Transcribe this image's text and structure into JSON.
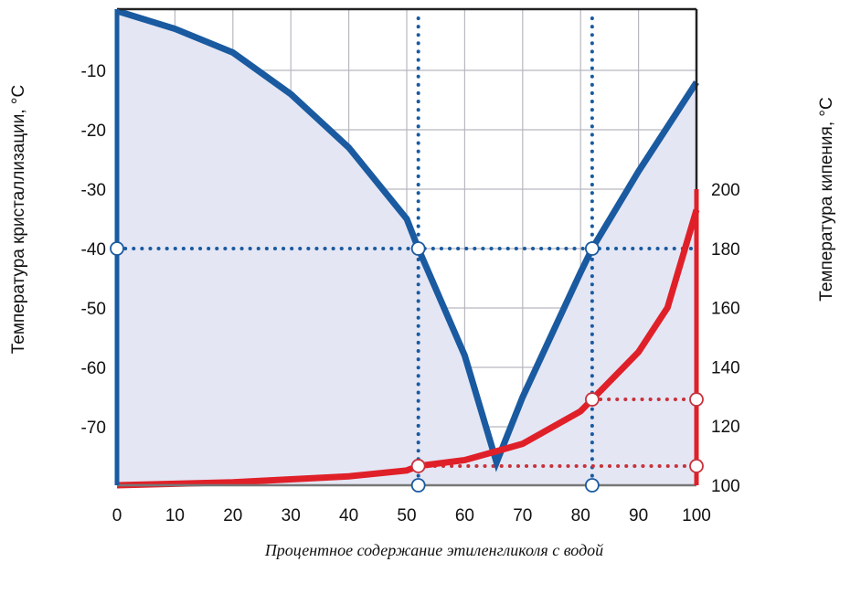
{
  "chart_data": {
    "type": "line",
    "title": "",
    "xlabel": "Процентное содержание этиленгликоля с водой",
    "ylabel_left": "Температура кристаллизации, °С",
    "ylabel_right": "Температура кипения, °С",
    "xlim": [
      0,
      100
    ],
    "ylim_left": [
      -80,
      2
    ],
    "ylim_right": [
      100,
      200
    ],
    "x_ticks": [
      "0",
      "10",
      "20",
      "30",
      "40",
      "50",
      "60",
      "70",
      "80",
      "90",
      "100"
    ],
    "y_left_ticks": [
      "-10",
      "-20",
      "-30",
      "-40",
      "-50",
      "-60",
      "-70"
    ],
    "y_right_ticks": [
      "200",
      "180",
      "160",
      "140",
      "120",
      "100"
    ],
    "grid": true,
    "colors": {
      "freezing": "#1a5aa0",
      "boiling": "#e02028",
      "fill": "#e4e6f4",
      "guides_blue": "#1a5aa0",
      "guides_red": "#c8323a"
    },
    "series": [
      {
        "axis": "left",
        "x": [
          0,
          10,
          20,
          30,
          40,
          50,
          52,
          60,
          65.5,
          70,
          80,
          82,
          90,
          100
        ],
        "y": [
          0,
          -3,
          -7,
          -14,
          -23,
          -35,
          -40,
          -58,
          -76,
          -65,
          -44,
          -40,
          -27,
          -12
        ]
      },
      {
        "axis": "right",
        "x": [
          0,
          10,
          20,
          30,
          40,
          50,
          52,
          60,
          65.5,
          70,
          80,
          82,
          90,
          95,
          100
        ],
        "y": [
          100,
          100.5,
          101,
          102,
          103,
          105,
          106.5,
          108.5,
          111.5,
          114,
          125,
          129,
          145,
          160,
          193
        ]
      }
    ],
    "annotations": {
      "freezing_level": -40,
      "concentrations": [
        52,
        82
      ],
      "boiling_points": [
        106.5,
        129
      ]
    }
  }
}
